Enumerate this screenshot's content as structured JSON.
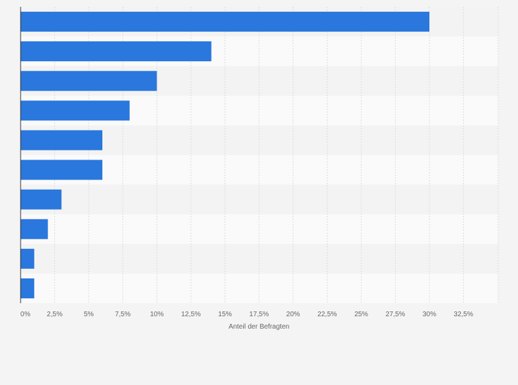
{
  "chart_data": {
    "type": "bar",
    "orientation": "horizontal",
    "categories": [
      "",
      "",
      "",
      "",
      "",
      "",
      "",
      "",
      "",
      ""
    ],
    "values": [
      30,
      14,
      10,
      8,
      6,
      6,
      3,
      2,
      1,
      1
    ],
    "xlabel": "Anteil der Befragten",
    "ylabel": "",
    "xlim": [
      0,
      35
    ],
    "ticks": [
      "0%",
      "2,5%",
      "5%",
      "7,5%",
      "10%",
      "12,5%",
      "15%",
      "17,5%",
      "20%",
      "22,5%",
      "25%",
      "27,5%",
      "30%",
      "32,5%"
    ],
    "tick_values": [
      0,
      2.5,
      5,
      7.5,
      10,
      12.5,
      15,
      17.5,
      20,
      22.5,
      25,
      27.5,
      30,
      32.5
    ],
    "grid": true,
    "colors": {
      "bar": "#2a77dd",
      "band_light": "#fafafa",
      "band_dark": "#f3f3f3",
      "grid": "#dcdcdc",
      "axis": "#333333",
      "text": "#666666"
    }
  }
}
